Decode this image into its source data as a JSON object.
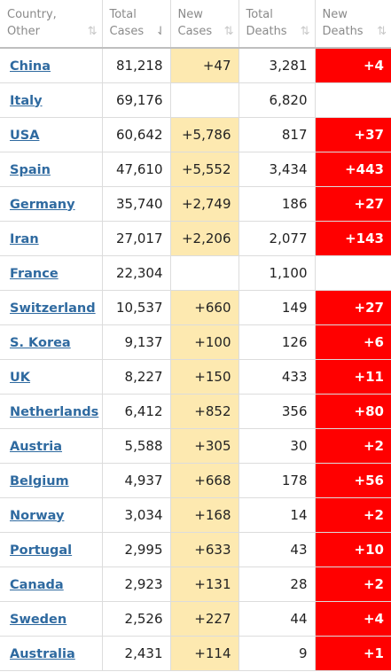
{
  "headers": [
    {
      "line1": "Country,",
      "line2": "Other",
      "sort_icon": "sort-both-icon",
      "sort_glyph": "⇅"
    },
    {
      "line1": "Total",
      "line2": "Cases",
      "sort_icon": "sort-desc-icon",
      "sort_glyph": "⇃"
    },
    {
      "line1": "New",
      "line2": "Cases",
      "sort_icon": "sort-both-icon",
      "sort_glyph": "⇅"
    },
    {
      "line1": "Total",
      "line2": "Deaths",
      "sort_icon": "sort-both-icon",
      "sort_glyph": "⇅"
    },
    {
      "line1": "New",
      "line2": "Deaths",
      "sort_icon": "sort-both-icon",
      "sort_glyph": "⇅"
    }
  ],
  "colors": {
    "new_cases_bg": "#fde9b0",
    "new_deaths_bg": "#ff0000",
    "link": "#2f6aa0"
  },
  "rows": [
    {
      "country": "China",
      "total_cases": "81,218",
      "new_cases": "+47",
      "total_deaths": "3,281",
      "new_deaths": "+4"
    },
    {
      "country": "Italy",
      "total_cases": "69,176",
      "new_cases": "",
      "total_deaths": "6,820",
      "new_deaths": ""
    },
    {
      "country": "USA",
      "total_cases": "60,642",
      "new_cases": "+5,786",
      "total_deaths": "817",
      "new_deaths": "+37"
    },
    {
      "country": "Spain",
      "total_cases": "47,610",
      "new_cases": "+5,552",
      "total_deaths": "3,434",
      "new_deaths": "+443"
    },
    {
      "country": "Germany",
      "total_cases": "35,740",
      "new_cases": "+2,749",
      "total_deaths": "186",
      "new_deaths": "+27"
    },
    {
      "country": "Iran",
      "total_cases": "27,017",
      "new_cases": "+2,206",
      "total_deaths": "2,077",
      "new_deaths": "+143"
    },
    {
      "country": "France",
      "total_cases": "22,304",
      "new_cases": "",
      "total_deaths": "1,100",
      "new_deaths": ""
    },
    {
      "country": "Switzerland",
      "total_cases": "10,537",
      "new_cases": "+660",
      "total_deaths": "149",
      "new_deaths": "+27"
    },
    {
      "country": "S. Korea",
      "total_cases": "9,137",
      "new_cases": "+100",
      "total_deaths": "126",
      "new_deaths": "+6"
    },
    {
      "country": "UK",
      "total_cases": "8,227",
      "new_cases": "+150",
      "total_deaths": "433",
      "new_deaths": "+11"
    },
    {
      "country": "Netherlands",
      "total_cases": "6,412",
      "new_cases": "+852",
      "total_deaths": "356",
      "new_deaths": "+80"
    },
    {
      "country": "Austria",
      "total_cases": "5,588",
      "new_cases": "+305",
      "total_deaths": "30",
      "new_deaths": "+2"
    },
    {
      "country": "Belgium",
      "total_cases": "4,937",
      "new_cases": "+668",
      "total_deaths": "178",
      "new_deaths": "+56"
    },
    {
      "country": "Norway",
      "total_cases": "3,034",
      "new_cases": "+168",
      "total_deaths": "14",
      "new_deaths": "+2"
    },
    {
      "country": "Portugal",
      "total_cases": "2,995",
      "new_cases": "+633",
      "total_deaths": "43",
      "new_deaths": "+10"
    },
    {
      "country": "Canada",
      "total_cases": "2,923",
      "new_cases": "+131",
      "total_deaths": "28",
      "new_deaths": "+2"
    },
    {
      "country": "Sweden",
      "total_cases": "2,526",
      "new_cases": "+227",
      "total_deaths": "44",
      "new_deaths": "+4"
    },
    {
      "country": "Australia",
      "total_cases": "2,431",
      "new_cases": "+114",
      "total_deaths": "9",
      "new_deaths": "+1"
    }
  ]
}
